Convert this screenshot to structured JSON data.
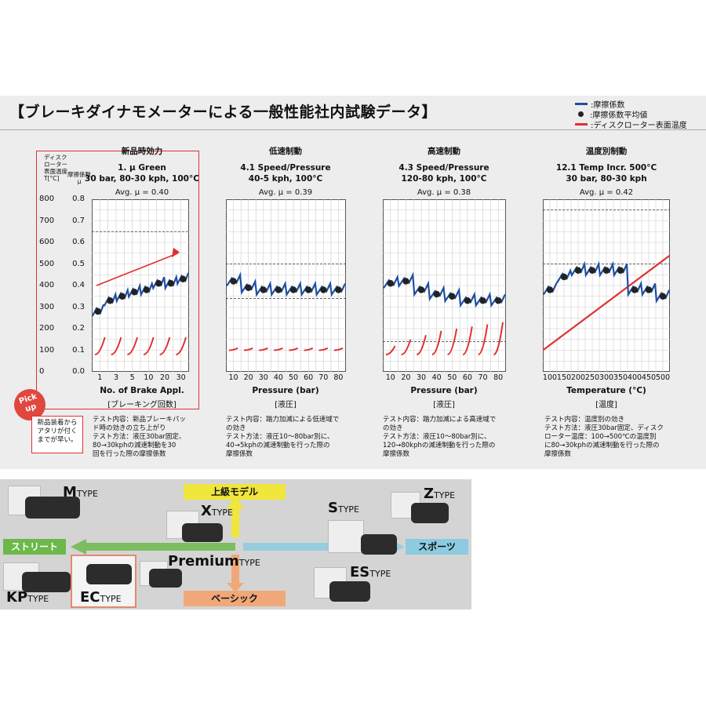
{
  "title": "【ブレーキダイナモメーターによる一般性能社内試験データ】",
  "legend": [
    {
      "label": ":摩擦係数",
      "color": "#1f4fa0",
      "kind": "line"
    },
    {
      "label": ":摩擦係数平均値",
      "color": "#222222",
      "kind": "dot"
    },
    {
      "label": ":ディスクローター表面温度",
      "color": "#e03030",
      "kind": "line"
    }
  ],
  "yaxis": {
    "temp_header": "ディスク\nローター\n表面温度\nT[°C]",
    "mu_header": "摩擦係数\nμ",
    "temp_ticks": [
      "800",
      "700",
      "600",
      "500",
      "400",
      "300",
      "200",
      "100",
      "0"
    ],
    "mu_ticks": [
      "0.8",
      "0.7",
      "0.6",
      "0.5",
      "0.4",
      "0.3",
      "0.2",
      "0.1",
      "0.0"
    ]
  },
  "pick": {
    "badge": "Pick up",
    "note": "新品装着から\nアタリが付く\nまでが早い。"
  },
  "chart_data": [
    {
      "type": "line",
      "heading": "新品時効力",
      "title": "1. μ Green\n30 bar, 80-30 kph, 100°C",
      "avg": "Avg. μ = 0.40",
      "xlabel": "No. of Brake Appl.",
      "xsub": "[ブレーキング回数]",
      "x_ticks": [
        "1",
        "3",
        "5",
        "10",
        "20",
        "30"
      ],
      "ylim_mu": [
        0,
        0.8
      ],
      "ylim_temp": [
        0,
        800
      ],
      "mu_avg_points": [
        0.28,
        0.33,
        0.35,
        0.37,
        0.38,
        0.41,
        0.41,
        0.43
      ],
      "temp_start": [
        80,
        80,
        80,
        80,
        80,
        80
      ],
      "temp_end": [
        160,
        160,
        160,
        160,
        160,
        160
      ],
      "dashed_temp": [
        650
      ],
      "description": "テスト内容：新品ブレーキパッ\nド時の効きの立ち上がり\nテスト方法：液圧30bar固定、\n80→30kphの減速制動を30\n回を行った際の摩擦係数"
    },
    {
      "type": "line",
      "heading": "低速制動",
      "title": "4.1 Speed/Pressure\n40-5 kph, 100°C",
      "avg": "Avg. μ = 0.39",
      "xlabel": "Pressure (bar)",
      "xsub": "[液圧]",
      "x_ticks": [
        "10",
        "20",
        "30",
        "40",
        "50",
        "60",
        "70",
        "80"
      ],
      "ylim_mu": [
        0,
        0.8
      ],
      "ylim_temp": [
        0,
        800
      ],
      "mu_avg_points": [
        0.42,
        0.39,
        0.38,
        0.38,
        0.38,
        0.38,
        0.38,
        0.38
      ],
      "temp_start": [
        100,
        100,
        100,
        100,
        100,
        100,
        100,
        100
      ],
      "temp_end": [
        110,
        110,
        110,
        110,
        110,
        110,
        110,
        110
      ],
      "dashed_temp": [
        500,
        340
      ],
      "description": "テスト内容：踏力加減による低速域で\nの効き\nテスト方法：液圧10〜80bar別に、\n40→5kphの減速制動を行った際の\n摩擦係数"
    },
    {
      "type": "line",
      "heading": "高速制動",
      "title": "4.3 Speed/Pressure\n120-80 kph, 100°C",
      "avg": "Avg. μ = 0.38",
      "xlabel": "Pressure (bar)",
      "xsub": "[液圧]",
      "x_ticks": [
        "10",
        "20",
        "30",
        "40",
        "50",
        "60",
        "70",
        "80"
      ],
      "ylim_mu": [
        0,
        0.8
      ],
      "ylim_temp": [
        0,
        800
      ],
      "mu_avg_points": [
        0.41,
        0.42,
        0.38,
        0.36,
        0.35,
        0.33,
        0.33,
        0.33
      ],
      "temp_start": [
        80,
        80,
        80,
        80,
        80,
        80,
        80,
        80
      ],
      "temp_end": [
        120,
        150,
        170,
        190,
        200,
        210,
        220,
        230
      ],
      "dashed_temp": [
        140
      ],
      "description": "テスト内容：踏力加減による高速域で\nの効き\nテスト方法：液圧10〜80bar別に、\n120→80kphの減速制動を行った際の\n摩擦係数"
    },
    {
      "type": "line",
      "heading": "温度別制動",
      "title": "12.1 Temp Incr. 500°C\n30 bar, 80-30 kph",
      "avg": "Avg. μ = 0.42",
      "xlabel": "Temperature (°C)",
      "xsub": "[温度]",
      "x_ticks": [
        "100",
        "150",
        "200",
        "250",
        "300",
        "350",
        "400",
        "450",
        "500"
      ],
      "ylim_mu": [
        0,
        0.8
      ],
      "ylim_temp": [
        0,
        800
      ],
      "mu_avg_points": [
        0.38,
        0.44,
        0.47,
        0.47,
        0.47,
        0.47,
        0.38,
        0.38,
        0.35
      ],
      "temp_line": [
        100,
        140,
        180,
        220,
        260,
        300,
        340,
        380,
        420,
        460,
        500,
        540
      ],
      "dashed_temp": [
        750,
        500
      ],
      "description": "テスト内容：温度別の効き\nテスト方法：液圧30bar固定、ディスク\nローター温度：100→500℃の温度別\nに80→30kphの減速制動を行った際の\n摩擦係数"
    }
  ],
  "lineup": {
    "upper_label": "上級モデル",
    "lower_label": "ベーシック",
    "left_label": "ストリート",
    "right_label": "スポーツ",
    "types": {
      "m": {
        "big": "M",
        "small": "TYPE"
      },
      "x": {
        "big": "X",
        "small": "TYPE"
      },
      "premium": {
        "big": "Premium",
        "small": "TYPE"
      },
      "kp": {
        "big": "KP",
        "small": "TYPE"
      },
      "ec": {
        "big": "EC",
        "small": "TYPE"
      },
      "s": {
        "big": "S",
        "small": "TYPE"
      },
      "z": {
        "big": "Z",
        "small": "TYPE"
      },
      "es": {
        "big": "ES",
        "small": "TYPE"
      }
    },
    "upper_color": "#f0e63c",
    "lower_color": "#f0a878",
    "left_color": "#6cb84a",
    "right_color": "#8ccbe0"
  }
}
